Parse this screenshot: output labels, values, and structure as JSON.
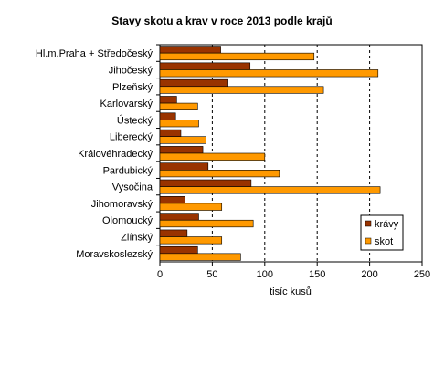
{
  "chart_data": {
    "type": "bar",
    "orientation": "horizontal",
    "title": "Stavy skotu a krav v roce 2013 podle krajů",
    "xlabel": "tisíc kusů",
    "ylabel": "",
    "xlim": [
      0,
      250
    ],
    "xticks": [
      0,
      50,
      100,
      150,
      200,
      250
    ],
    "grid": "vertical-dashed",
    "legend_position": "bottom-right",
    "categories": [
      "Hl.m.Praha + Středočeský",
      "Jihočeský",
      "Plzeňský",
      "Karlovarský",
      "Ústecký",
      "Liberecký",
      "Královéhradecký",
      "Pardubický",
      "Vysočina",
      "Jihomoravský",
      "Olomoucký",
      "Zlínský",
      "Moravskoslezský"
    ],
    "series": [
      {
        "name": "krávy",
        "color": "#993300",
        "values": [
          58,
          86,
          65,
          16,
          15,
          20,
          41,
          46,
          87,
          24,
          37,
          26,
          36
        ]
      },
      {
        "name": "skot",
        "color": "#ff9900",
        "values": [
          147,
          208,
          156,
          36,
          37,
          44,
          100,
          114,
          210,
          59,
          89,
          59,
          77
        ]
      }
    ]
  }
}
